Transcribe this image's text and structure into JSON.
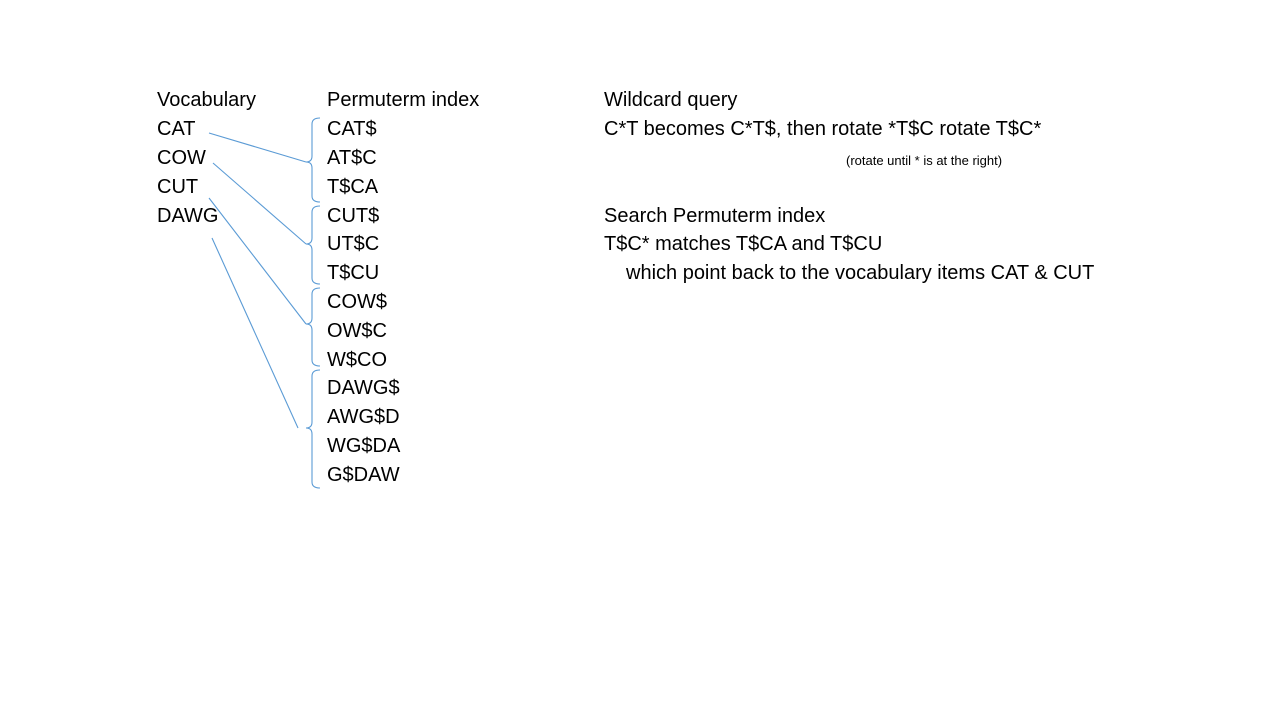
{
  "vocabulary": {
    "header": "Vocabulary",
    "items": [
      "CAT",
      "COW",
      "CUT",
      "DAWG"
    ]
  },
  "permuterm": {
    "header": "Permuterm index",
    "entries": [
      "CAT$",
      "AT$C",
      "T$CA",
      "CUT$",
      "UT$C",
      "T$CU",
      "COW$",
      "OW$C",
      "W$CO",
      "DAWG$",
      "AWG$D",
      "WG$DA",
      "G$DAW"
    ]
  },
  "wildcard": {
    "header": "Wildcard query",
    "line1": "C*T becomes C*T$, then rotate *T$C rotate T$C*",
    "note": "(rotate until * is at the right)"
  },
  "search": {
    "header": "Search Permuterm index",
    "line1": "T$C* matches T$CA and T$CU",
    "line2": "which point back to the vocabulary items CAT & CUT"
  },
  "colors": {
    "connector": "#5b9bd5",
    "text": "#000000",
    "background": "#ffffff"
  }
}
